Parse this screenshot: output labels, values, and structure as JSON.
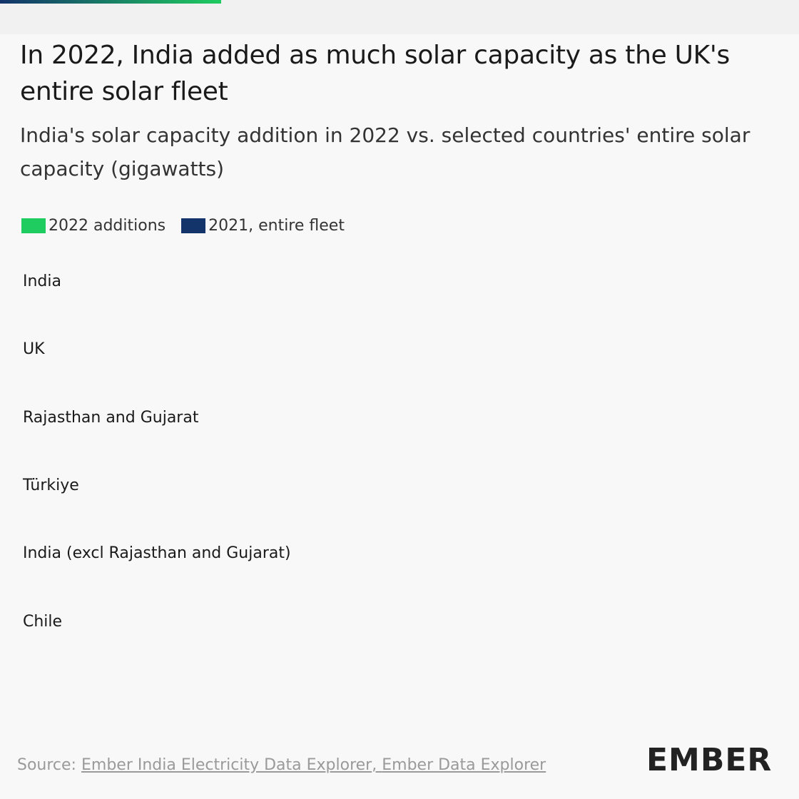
{
  "chart_data": {
    "type": "bar",
    "title": "In 2022, India added as much solar capacity as the UK's entire solar fleet",
    "subtitle": "India's solar capacity addition in 2022 vs. selected countries' entire solar capacity (gigawatts)",
    "categories": [
      "India",
      "UK",
      "Rajasthan and Gujarat",
      "Türkiye",
      "India (excl Rajasthan and Gujarat)",
      "Chile"
    ],
    "series": [
      {
        "name": "2022 additions",
        "color": "#1fcc60"
      },
      {
        "name": "2021, entire fleet",
        "color": "#13336b"
      }
    ],
    "source_label": "Source:",
    "source_links": [
      "Ember India Electricity Data Explorer",
      "Ember Data Explorer"
    ],
    "logo": "EMBER"
  }
}
